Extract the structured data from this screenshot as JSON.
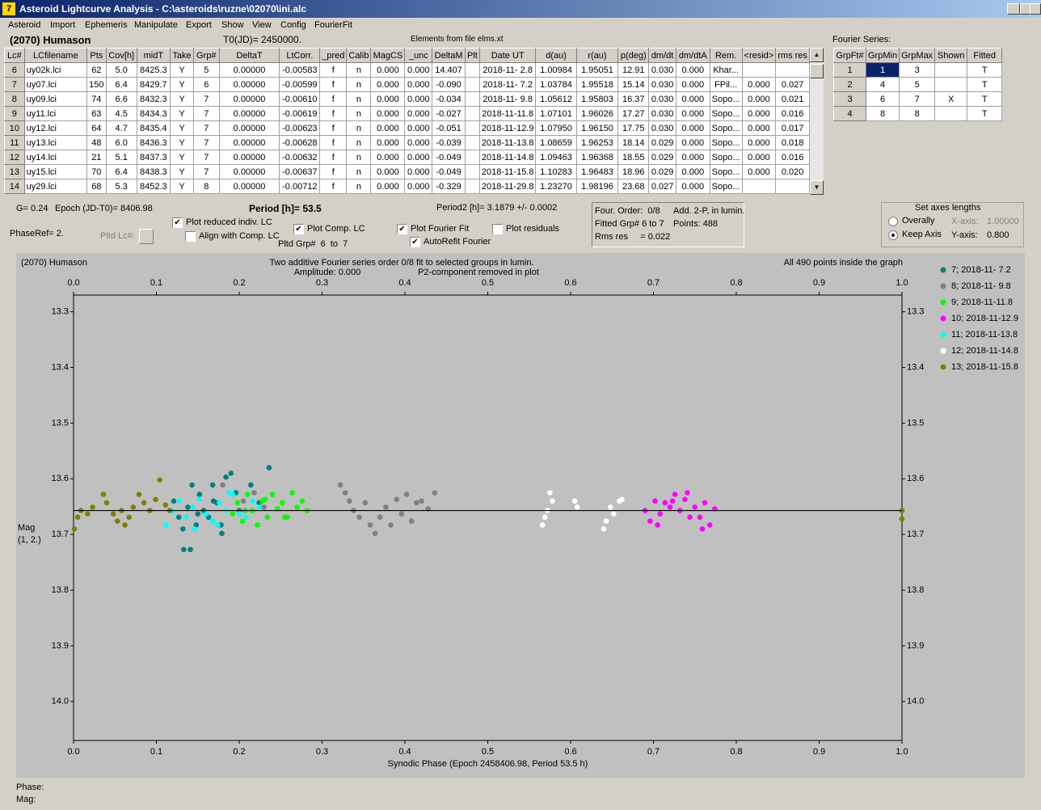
{
  "window": {
    "title": "Asteroid Lightcurve Analysis - C:\\asteroids\\ruzne\\02070\\ini.alc",
    "menu": [
      "Asteroid",
      "Import",
      "Ephemeris",
      "Manipulate",
      "Export",
      "Show",
      "View",
      "Config",
      "FourierFit"
    ]
  },
  "header": {
    "asteroid": "(2070) Humason",
    "t0": "T0(JD)= 2450000.",
    "elements": "Elements from file elms.xt",
    "fourier_caption": "Fourier Series:"
  },
  "table": {
    "columns": [
      "Lc#",
      "LCfilename",
      "Pts",
      "Cov[h]",
      "midT",
      "Take",
      "Grp#",
      "DeltaT",
      "LtCorr.",
      "_pred",
      "Calib",
      "MagCS",
      "_unc",
      "DeltaM",
      "Plt",
      "Date UT",
      "d(au)",
      "r(au)",
      "p(deg)",
      "dm/dt",
      "dm/dtA",
      "Rem.",
      "<resid>",
      "rms res"
    ],
    "rows": [
      [
        "6",
        "uy02k.lci",
        "62",
        "5.0",
        "8425.3",
        "Y",
        "5",
        "0.00000",
        "-0.00583",
        "f",
        "n",
        "0.000",
        "0.000",
        "14.407",
        null,
        "2018-11- 2.8",
        "1.00984",
        "1.95051",
        "12.91",
        "0.030",
        "0.000",
        "Khar...",
        null,
        null
      ],
      [
        "7",
        "uy07.lci",
        "150",
        "6.4",
        "8429.7",
        "Y",
        "6",
        "0.00000",
        "-0.00599",
        "f",
        "n",
        "0.000",
        "0.000",
        "-0.090",
        null,
        "2018-11- 7.2",
        "1.03784",
        "1.95518",
        "15.14",
        "0.030",
        "0.000",
        "FPil...",
        "0.000",
        "0.027"
      ],
      [
        "8",
        "uy09.lci",
        "74",
        "6.6",
        "8432.3",
        "Y",
        "7",
        "0.00000",
        "-0.00610",
        "f",
        "n",
        "0.000",
        "0.000",
        "-0.034",
        null,
        "2018-11- 9.8",
        "1.05612",
        "1.95803",
        "16.37",
        "0.030",
        "0.000",
        "Sopo...",
        "0.000",
        "0.021"
      ],
      [
        "9",
        "uy11.lci",
        "63",
        "4.5",
        "8434.3",
        "Y",
        "7",
        "0.00000",
        "-0.00619",
        "f",
        "n",
        "0.000",
        "0.000",
        "-0.027",
        null,
        "2018-11-11.8",
        "1.07101",
        "1.96026",
        "17.27",
        "0.030",
        "0.000",
        "Sopo...",
        "0.000",
        "0.016"
      ],
      [
        "10",
        "uy12.lci",
        "64",
        "4.7",
        "8435.4",
        "Y",
        "7",
        "0.00000",
        "-0.00623",
        "f",
        "n",
        "0.000",
        "0.000",
        "-0.051",
        null,
        "2018-11-12.9",
        "1.07950",
        "1.96150",
        "17.75",
        "0.030",
        "0.000",
        "Sopo...",
        "0.000",
        "0.017"
      ],
      [
        "11",
        "uy13.lci",
        "48",
        "6.0",
        "8436.3",
        "Y",
        "7",
        "0.00000",
        "-0.00628",
        "f",
        "n",
        "0.000",
        "0.000",
        "-0.039",
        null,
        "2018-11-13.8",
        "1.08659",
        "1.96253",
        "18.14",
        "0.029",
        "0.000",
        "Sopo...",
        "0.000",
        "0.018"
      ],
      [
        "12",
        "uy14.lci",
        "21",
        "5.1",
        "8437.3",
        "Y",
        "7",
        "0.00000",
        "-0.00632",
        "f",
        "n",
        "0.000",
        "0.000",
        "-0.049",
        null,
        "2018-11-14.8",
        "1.09463",
        "1.96368",
        "18.55",
        "0.029",
        "0.000",
        "Sopo...",
        "0.000",
        "0.016"
      ],
      [
        "13",
        "uy15.lci",
        "70",
        "6.4",
        "8438.3",
        "Y",
        "7",
        "0.00000",
        "-0.00637",
        "f",
        "n",
        "0.000",
        "0.000",
        "-0.049",
        null,
        "2018-11-15.8",
        "1.10283",
        "1.96483",
        "18.96",
        "0.029",
        "0.000",
        "Sopo...",
        "0.000",
        "0.020"
      ],
      [
        "14",
        "uy29.lci",
        "68",
        "5.3",
        "8452.3",
        "Y",
        "8",
        "0.00000",
        "-0.00712",
        "f",
        "n",
        "0.000",
        "0.000",
        "-0.329",
        null,
        "2018-11-29.8",
        "1.23270",
        "1.98196",
        "23.68",
        "0.027",
        "0.000",
        "Sopo...",
        null,
        null
      ]
    ]
  },
  "fourier_table": {
    "columns": [
      "GrpFt#",
      "GrpMin",
      "GrpMax",
      "Shown",
      "Fitted"
    ],
    "rows": [
      [
        "1",
        "1",
        "3",
        null,
        "T"
      ],
      [
        "2",
        "4",
        "5",
        null,
        "T"
      ],
      [
        "3",
        "6",
        "7",
        "X",
        "T"
      ],
      [
        "4",
        "8",
        "8",
        null,
        "T"
      ]
    ],
    "selected": [
      0,
      1
    ]
  },
  "info": {
    "g": "G= 0.24",
    "epoch": "Epoch (JD-T0)= 8406.98",
    "period": "Period [h]= 53.5",
    "period2": "Period2 [h]= 3.1879 +/- 0.0002",
    "phase_ref": "PhaseRef= 2.",
    "pltd_lc": "Pltd Lc#:",
    "pltd_grp": "Pltd Grp#  6  to  7"
  },
  "checkboxes": [
    {
      "label": "Plot reduced indiv. LC",
      "checked": true
    },
    {
      "label": "Align with Comp. LC",
      "checked": false
    },
    {
      "label": "Plot Comp. LC",
      "checked": true
    },
    {
      "label": "Plot Fourier Fit",
      "checked": true
    },
    {
      "label": "Plot residuals",
      "checked": false
    },
    {
      "label": "AutoRefit Fourier",
      "checked": true
    }
  ],
  "fit_box": {
    "order": "Four. Order:  0/8",
    "add": "Add. 2-P, in lumin.",
    "fitted": "Fitted Grp# 6 to 7",
    "points": "Points: 488",
    "rms": "Rms res     = 0.022"
  },
  "axes_box": {
    "title": "Set axes lengths",
    "radios": [
      {
        "label": "Overally",
        "checked": false
      },
      {
        "label": "Keep Axis",
        "checked": true
      }
    ],
    "x_label": "X-axis:",
    "x_value": "1.00000",
    "y_label": "Y-axis:",
    "y_value": "0.800"
  },
  "status": {
    "phase": "Phase:",
    "mag": "Mag:"
  },
  "chart_data": {
    "type": "scatter",
    "corner_text": "(2070) Humason",
    "title": "Two additive Fourier series order 0/8 fit to selected groups in lumin.",
    "subtitle": [
      "Amplitude: 0.000",
      "P2-component removed in plot"
    ],
    "note": "All 490 points inside the graph",
    "xlabel": "Synodic Phase (Epoch 2458406.98, Period 53.5 h)",
    "ylabel": [
      "Mag",
      "(1, 2.)"
    ],
    "xlim": [
      0,
      1
    ],
    "ylim": [
      13.27,
      14.07
    ],
    "y_inverted": true,
    "grid": false,
    "xticks": [
      {
        "value": 0,
        "label": "0.0"
      },
      0.1,
      0.2,
      0.3,
      0.4,
      0.5,
      0.6,
      0.7,
      0.8,
      0.9,
      {
        "value": 1,
        "label": "1.0"
      }
    ],
    "yticks": [
      13.3,
      13.4,
      13.5,
      13.6,
      13.7,
      13.8,
      13.9,
      {
        "value": 14,
        "label": "14.0"
      }
    ],
    "fit_line": {
      "color": "#000000",
      "x": [
        0,
        1
      ],
      "values": [
        13.657,
        13.657
      ]
    },
    "series": [
      {
        "name": "7; 2018-11- 7.2",
        "color": "#008080",
        "x": [
          0.121,
          0.127,
          0.133,
          0.138,
          0.143,
          0.148,
          0.152,
          0.157,
          0.163,
          0.168,
          0.173,
          0.178,
          0.184,
          0.19,
          0.196,
          0.132,
          0.141,
          0.15,
          0.169,
          0.179,
          0.2,
          0.214,
          0.224,
          0.236
        ],
        "values": [
          13.64,
          13.669,
          13.727,
          13.651,
          13.611,
          13.683,
          13.628,
          13.657,
          13.669,
          13.611,
          13.643,
          13.683,
          13.597,
          13.59,
          13.625,
          13.69,
          13.727,
          13.663,
          13.64,
          13.698,
          13.657,
          13.611,
          13.643,
          13.58
        ]
      },
      {
        "name": "8; 2018-11- 9.8",
        "color": "#808080",
        "x": [
          0.18,
          0.205,
          0.218,
          0.23,
          0.322,
          0.328,
          0.333,
          0.338,
          0.345,
          0.352,
          0.358,
          0.364,
          0.37,
          0.377,
          0.383,
          0.39,
          0.396,
          0.402,
          0.408,
          0.414,
          0.42,
          0.428,
          0.436
        ],
        "values": [
          13.611,
          13.64,
          13.625,
          13.651,
          13.611,
          13.625,
          13.64,
          13.657,
          13.669,
          13.643,
          13.683,
          13.698,
          13.669,
          13.651,
          13.683,
          13.637,
          13.663,
          13.628,
          13.676,
          13.643,
          13.64,
          13.654,
          13.625
        ]
      },
      {
        "name": "9; 2018-11-11.8",
        "color": "#00ff00",
        "x": [
          0.192,
          0.198,
          0.204,
          0.21,
          0.216,
          0.222,
          0.228,
          0.234,
          0.24,
          0.246,
          0.252,
          0.258,
          0.264,
          0.27,
          0.276,
          0.282,
          0.207,
          0.231,
          0.255
        ],
        "values": [
          13.663,
          13.643,
          13.676,
          13.628,
          13.657,
          13.683,
          13.64,
          13.669,
          13.628,
          13.654,
          13.643,
          13.669,
          13.625,
          13.651,
          13.64,
          13.657,
          13.657,
          13.637,
          13.669
        ]
      },
      {
        "name": "10; 2018-11-12.9",
        "color": "#ff00ff",
        "x": [
          0.69,
          0.696,
          0.702,
          0.708,
          0.714,
          0.72,
          0.726,
          0.732,
          0.738,
          0.744,
          0.75,
          0.756,
          0.762,
          0.768,
          0.774,
          0.705,
          0.723,
          0.741,
          0.759
        ],
        "values": [
          13.657,
          13.676,
          13.64,
          13.663,
          13.643,
          13.651,
          13.628,
          13.657,
          13.637,
          13.669,
          13.651,
          13.669,
          13.643,
          13.683,
          13.654,
          13.683,
          13.64,
          13.625,
          13.69
        ]
      },
      {
        "name": "11; 2018-11-13.8",
        "color": "#00ffff",
        "x": [
          0.112,
          0.12,
          0.128,
          0.136,
          0.144,
          0.152,
          0.16,
          0.168,
          0.176,
          0.184,
          0.192,
          0.2,
          0.208,
          0.216,
          0.224,
          0.146,
          0.174,
          0.188
        ],
        "values": [
          13.683,
          13.657,
          13.64,
          13.669,
          13.651,
          13.637,
          13.663,
          13.676,
          13.643,
          13.657,
          13.628,
          13.663,
          13.669,
          13.64,
          13.651,
          13.69,
          13.683,
          13.625
        ]
      },
      {
        "name": "12; 2018-11-14.8",
        "color": "#ffffff",
        "x": [
          0.566,
          0.569,
          0.572,
          0.575,
          0.578,
          0.605,
          0.608,
          0.64,
          0.643,
          0.648,
          0.652,
          0.659,
          0.662
        ],
        "values": [
          13.683,
          13.669,
          13.657,
          13.625,
          13.64,
          13.64,
          13.651,
          13.69,
          13.676,
          13.651,
          13.663,
          13.64,
          13.637
        ]
      },
      {
        "name": "13; 2018-11-15.8",
        "color": "#808000",
        "x": [
          0.001,
          0.005,
          0.009,
          0.017,
          0.023,
          0.036,
          0.04,
          0.048,
          0.053,
          0.058,
          0.062,
          0.067,
          0.072,
          0.079,
          0.085,
          0.092,
          0.099,
          0.104,
          0.111,
          0.116,
          1.0,
          1.0
        ],
        "values": [
          13.69,
          13.669,
          13.657,
          13.663,
          13.651,
          13.628,
          13.643,
          13.663,
          13.676,
          13.657,
          13.683,
          13.669,
          13.651,
          13.628,
          13.643,
          13.657,
          13.637,
          13.602,
          13.647,
          13.657,
          13.657,
          13.672
        ]
      }
    ]
  }
}
